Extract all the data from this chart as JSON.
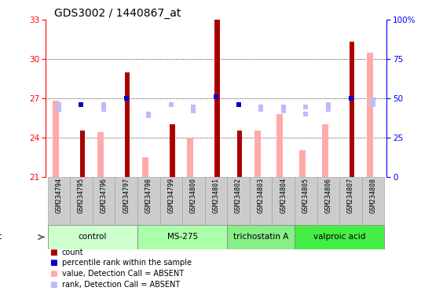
{
  "title": "GDS3002 / 1440867_at",
  "samples": [
    "GSM234794",
    "GSM234795",
    "GSM234796",
    "GSM234797",
    "GSM234798",
    "GSM234799",
    "GSM234800",
    "GSM234801",
    "GSM234802",
    "GSM234803",
    "GSM234804",
    "GSM234805",
    "GSM234806",
    "GSM234807",
    "GSM234808"
  ],
  "agents": [
    {
      "label": "control",
      "start": 0,
      "end": 4,
      "color": "#ccffcc"
    },
    {
      "label": "MS-275",
      "start": 4,
      "end": 8,
      "color": "#aaffaa"
    },
    {
      "label": "trichostatin A",
      "start": 8,
      "end": 11,
      "color": "#88ee88"
    },
    {
      "label": "valproic acid",
      "start": 11,
      "end": 15,
      "color": "#44ee44"
    }
  ],
  "count_values": [
    null,
    24.5,
    null,
    29.0,
    null,
    25.0,
    null,
    33.0,
    24.5,
    null,
    null,
    null,
    null,
    31.3,
    null
  ],
  "value_absent": [
    26.8,
    null,
    24.4,
    null,
    22.5,
    null,
    24.0,
    null,
    null,
    24.5,
    25.8,
    23.0,
    25.0,
    null,
    30.5
  ],
  "rank_absent_left": [
    26.5,
    null,
    26.5,
    null,
    25.8,
    26.5,
    26.3,
    null,
    26.5,
    26.3,
    26.3,
    26.3,
    26.5,
    null,
    26.5
  ],
  "percentile_present": [
    null,
    46.0,
    null,
    50.0,
    null,
    null,
    null,
    51.0,
    46.0,
    null,
    null,
    null,
    null,
    50.0,
    null
  ],
  "percentile_absent": [
    43.0,
    null,
    43.0,
    null,
    39.0,
    46.0,
    42.0,
    null,
    null,
    43.0,
    42.0,
    40.0,
    43.0,
    null,
    49.0
  ],
  "ylim_left": [
    21,
    33
  ],
  "ylim_right": [
    0,
    100
  ],
  "yticks_left": [
    21,
    24,
    27,
    30,
    33
  ],
  "yticks_right": [
    0,
    25,
    50,
    75,
    100
  ],
  "count_color": "#aa0000",
  "value_absent_color": "#ffaaaa",
  "rank_absent_color": "#bbbbff",
  "percentile_present_color": "#0000cc",
  "background_color": "#ffffff",
  "tick_label_bg": "#cccccc"
}
